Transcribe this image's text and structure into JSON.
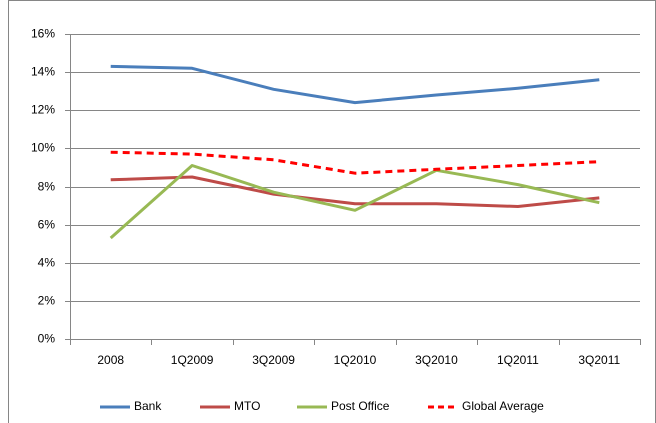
{
  "chart_data": {
    "type": "line",
    "categories": [
      "2008",
      "1Q2009",
      "3Q2009",
      "1Q2010",
      "3Q2010",
      "1Q2011",
      "3Q2011"
    ],
    "series": [
      {
        "name": "Bank",
        "color": "#4a7ebb",
        "dashed": false,
        "values": [
          14.3,
          14.2,
          13.1,
          12.4,
          12.8,
          13.15,
          13.6
        ]
      },
      {
        "name": "MTO",
        "color": "#be4b48",
        "dashed": false,
        "values": [
          8.35,
          8.5,
          7.6,
          7.1,
          7.1,
          6.95,
          7.4
        ]
      },
      {
        "name": "Post Office",
        "color": "#98b954",
        "dashed": false,
        "values": [
          5.3,
          9.1,
          7.7,
          6.75,
          8.85,
          8.1,
          7.15
        ]
      },
      {
        "name": "Global Average",
        "color": "#ff0000",
        "dashed": true,
        "values": [
          9.8,
          9.7,
          9.4,
          8.7,
          8.9,
          9.1,
          9.3
        ]
      }
    ],
    "ylim": [
      0,
      16
    ],
    "yticks": [
      {
        "value": 0,
        "label": "0%"
      },
      {
        "value": 2,
        "label": "2%"
      },
      {
        "value": 4,
        "label": "4%"
      },
      {
        "value": 6,
        "label": "6%"
      },
      {
        "value": 8,
        "label": "8%"
      },
      {
        "value": 10,
        "label": "10%"
      },
      {
        "value": 12,
        "label": "12%"
      },
      {
        "value": 14,
        "label": "14%"
      },
      {
        "value": 16,
        "label": "16%"
      }
    ],
    "grid": true,
    "legend": "bottom"
  }
}
